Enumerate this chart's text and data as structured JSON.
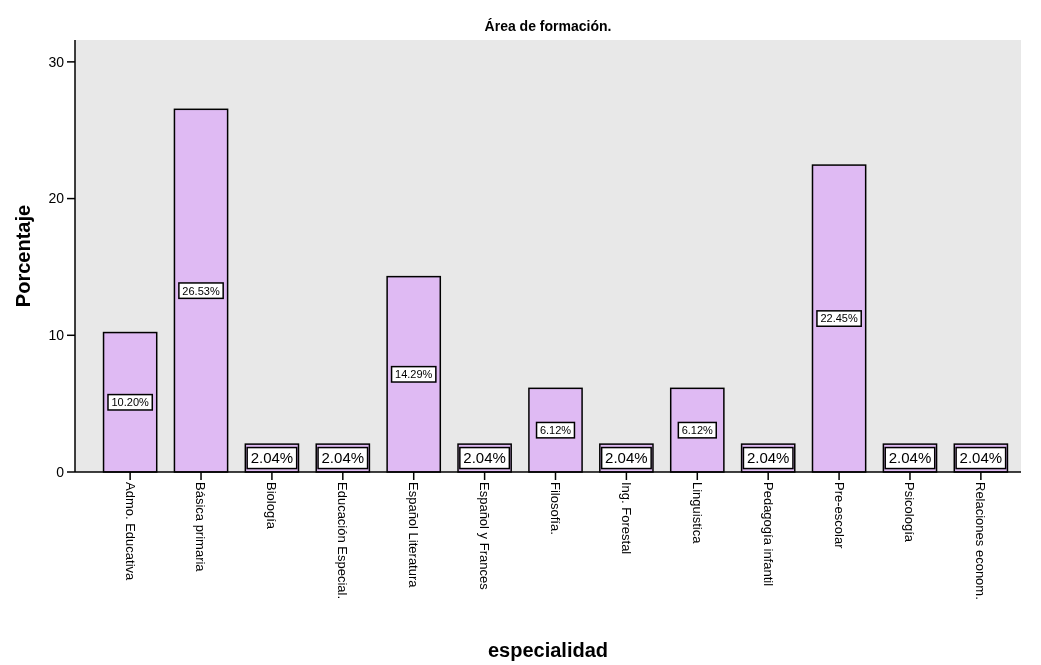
{
  "chart_data": {
    "type": "bar",
    "title": "Área de formación.",
    "xlabel": "especialidad",
    "ylabel": "Porcentaje",
    "categories": [
      "Admo. Educativa",
      "Básica primaria",
      "Biología",
      "Educación Especial.",
      "Español Literatura",
      "Español y Frances",
      "Filosofía.",
      "Ing. Forestal",
      "Linguistica",
      "Pedagogía infantil",
      "Pre-escolar",
      "Psicología",
      "Relaciones econom."
    ],
    "values": [
      10.2,
      26.53,
      2.04,
      2.04,
      14.29,
      2.04,
      6.12,
      2.04,
      6.12,
      2.04,
      22.45,
      2.04,
      2.04
    ],
    "value_labels": [
      "10.20%",
      "26.53%",
      "2.04%",
      "2.04%",
      "14.29%",
      "2.04%",
      "6.12%",
      "2.04%",
      "6.12%",
      "2.04%",
      "22.45%",
      "2.04%",
      "2.04%"
    ],
    "color": "#dfbaf3",
    "ylim": [
      0,
      31.6
    ],
    "yticks": [
      0,
      10,
      20,
      30
    ],
    "grid": false
  }
}
